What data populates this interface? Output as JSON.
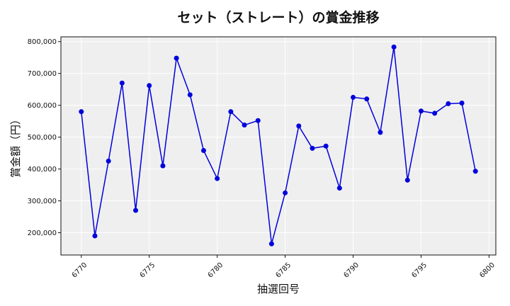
{
  "chart_data": {
    "type": "line",
    "title": "セット（ストレート）の賞金推移",
    "xlabel": "抽選回号",
    "ylabel": "賞金額（円）",
    "xlim": [
      6768.5,
      6800.5
    ],
    "ylim": [
      130000,
      815000
    ],
    "x_ticks": [
      6770,
      6775,
      6780,
      6785,
      6790,
      6795,
      6800
    ],
    "y_ticks": [
      200000,
      300000,
      400000,
      500000,
      600000,
      700000,
      800000
    ],
    "y_tick_labels": [
      "200,000",
      "300,000",
      "400,000",
      "500,000",
      "600,000",
      "700,000",
      "800,000"
    ],
    "grid": true,
    "series": [
      {
        "color": "#0000dd",
        "x": [
          6770,
          6771,
          6772,
          6773,
          6774,
          6775,
          6776,
          6777,
          6778,
          6779,
          6780,
          6781,
          6782,
          6783,
          6784,
          6785,
          6786,
          6787,
          6788,
          6789,
          6790,
          6791,
          6792,
          6793,
          6794,
          6795,
          6796,
          6797,
          6798,
          6799
        ],
        "y": [
          580000,
          190000,
          425000,
          670000,
          270000,
          662000,
          410000,
          748000,
          633000,
          458000,
          370000,
          580000,
          538000,
          552000,
          165000,
          325000,
          535000,
          465000,
          472000,
          340000,
          625000,
          620000,
          515000,
          783000,
          365000,
          582000,
          575000,
          605000,
          607000,
          393000
        ]
      }
    ]
  }
}
